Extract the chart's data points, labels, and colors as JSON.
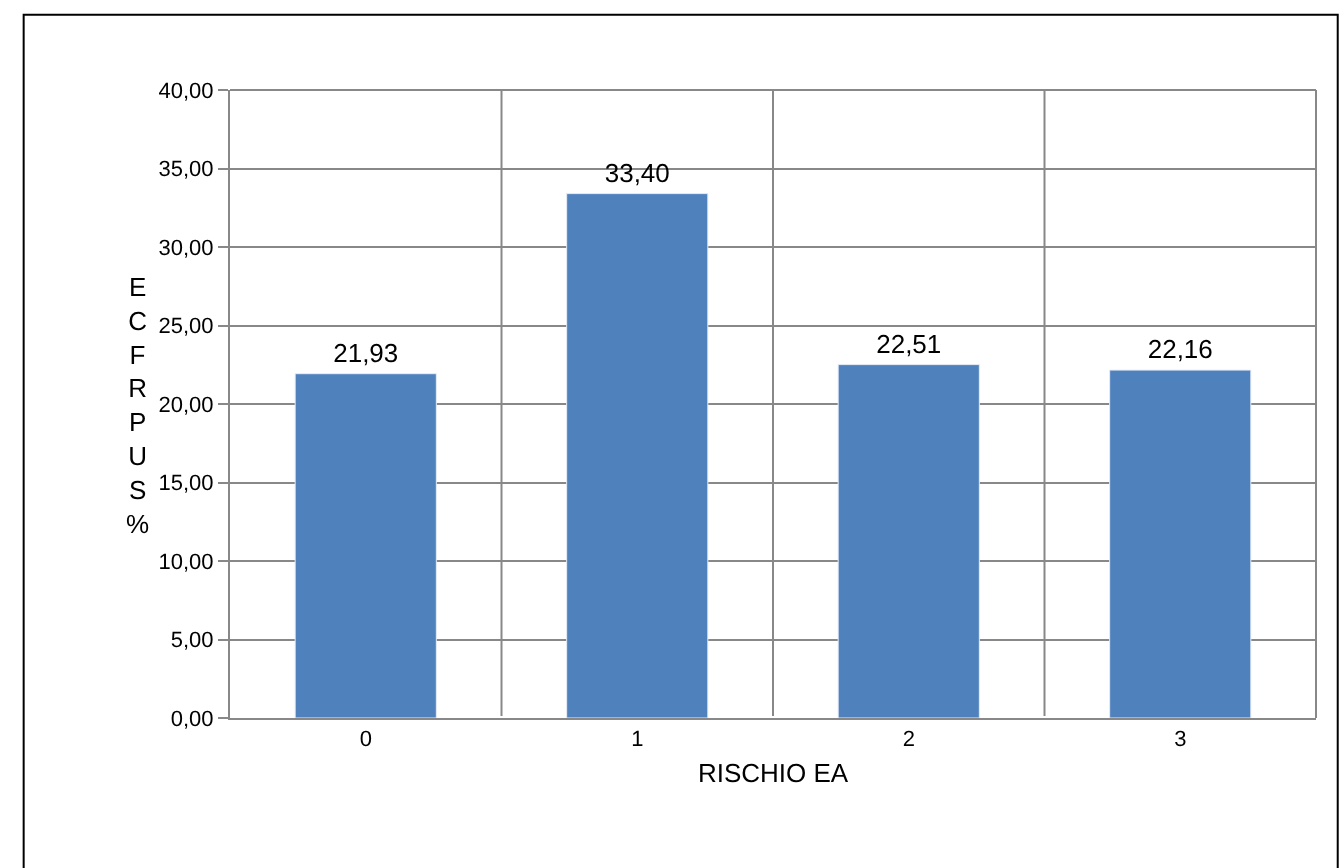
{
  "chart_data": {
    "type": "bar",
    "xlabel": "RISCHIO EA",
    "ylabel": "ECFRPUS %",
    "categories": [
      "0",
      "1",
      "2",
      "3"
    ],
    "values": [
      21.93,
      33.4,
      22.51,
      22.16
    ],
    "value_labels": [
      "21,93",
      "33,40",
      "22,51",
      "22,16"
    ],
    "color": "#4f81bd",
    "ylim": [
      0,
      40
    ],
    "yticks": [
      {
        "value": 0,
        "label": "0,00"
      },
      {
        "value": 5,
        "label": "5,00"
      },
      {
        "value": 10,
        "label": "10,00"
      },
      {
        "value": 15,
        "label": "15,00"
      },
      {
        "value": 20,
        "label": "20,00"
      },
      {
        "value": 25,
        "label": "25,00"
      },
      {
        "value": 30,
        "label": "30,00"
      },
      {
        "value": 35,
        "label": "35,00"
      },
      {
        "value": 40,
        "label": "40,00"
      }
    ],
    "grid": true
  }
}
